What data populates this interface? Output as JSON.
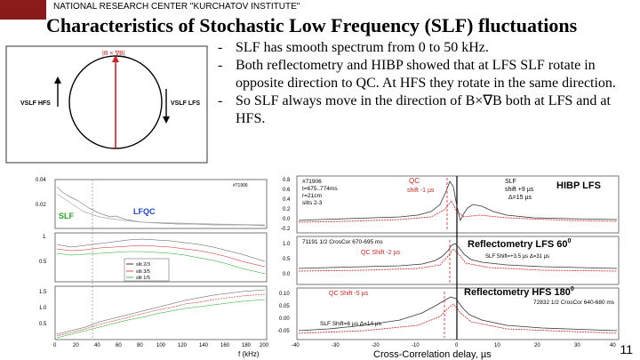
{
  "header": {
    "org": "NATIONAL RESEARCH CENTER \"KURCHATOV INSTITUTE\"",
    "title": "Characteristics of Stochastic Low Frequency (SLF) fluctuations"
  },
  "bullets": [
    "SLF has smooth spectrum from 0 to 50 kHz.",
    "Both reflectometry and HIBP showed that at LFS SLF rotate in opposite direction to QC. At HFS they rotate in the same direction.",
    "So SLF always move in the direction of B×∇B both at LFS and at HFS."
  ],
  "diagram": {
    "bxgradb": "|B × ∇B|",
    "hfs": "VSLF HFS",
    "lfs": "VSLF LFS"
  },
  "spectra": {
    "y_ticks_top": [
      "0.04",
      "0.02"
    ],
    "y_ticks_mid": [
      "1",
      "0.5"
    ],
    "y_ticks_bot": [
      "1.5",
      "1.0",
      "0.5"
    ],
    "x_ticks": [
      "0",
      "20",
      "40",
      "60",
      "80",
      "100",
      "120",
      "140",
      "160",
      "180",
      "200"
    ],
    "xlabel": "f (kHz)",
    "shot": "#71906",
    "slf": "SLF",
    "lfqc": "LFQC",
    "legend": [
      "slit 2/3",
      "slit 3/5",
      "slit 1/5"
    ]
  },
  "corr": {
    "panel1": {
      "shot": "#71906",
      "t": "t=675..774ms",
      "r": "r=21cm",
      "slits": "slits 2-3",
      "qc": "QC",
      "qc_shift": "shift -1 µs",
      "slf": "SLF",
      "slf_shift": "shift +9 µs",
      "delta": "Δ=15 µs",
      "title": "HIBP LFS",
      "y_ticks": [
        "0.8",
        "0.6",
        "0.4",
        "0.2",
        "0.0",
        "-0.2"
      ]
    },
    "panel2": {
      "info": "71191 1/2 CrosCor 670-695 ms",
      "title": "Reflectometry LFS 60",
      "title_sup": "0",
      "qc_shift": "QC Shift -2 µs",
      "slf_shift": "SLF Shift=+3.5 µs Δ=31 µs",
      "y_ticks": [
        "1.0",
        "0.5",
        "0.0"
      ]
    },
    "panel3": {
      "qc_shift": "QC Shift -5 µs",
      "title": "Reflectometry HFS 180",
      "title_sup": "0",
      "info": "72832 1/2 CrosCor 640-680 ms",
      "slf_shift": "SLF Shift=6 µs Δ=14 µs",
      "y_ticks": [
        "0.10",
        "0.05",
        "0.00",
        "-0.05"
      ]
    },
    "x_ticks": [
      "-40",
      "-30",
      "-20",
      "-10",
      "0",
      "10",
      "20",
      "30",
      "40"
    ],
    "xlabel": "Cross-Correlation delay, µs"
  },
  "page_number": "11"
}
